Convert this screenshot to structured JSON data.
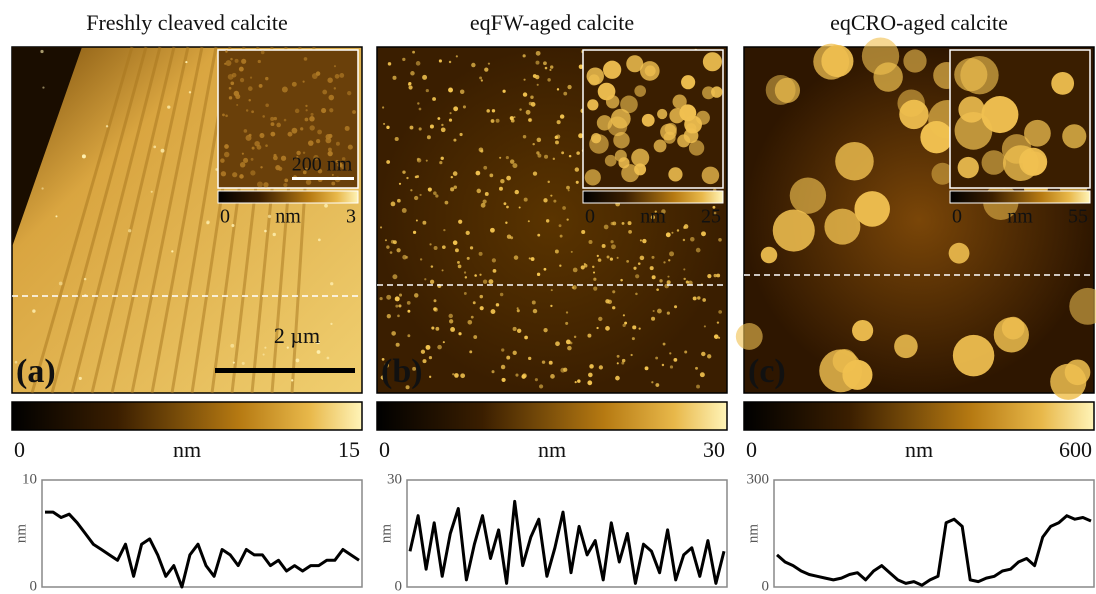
{
  "panels": [
    {
      "title": "Freshly cleaved calcite",
      "label": "(a)",
      "scale_bar": "2 µm",
      "colorbar": {
        "min": 0,
        "unit": "nm",
        "max": 15
      },
      "inset": {
        "scale_bar": "200 nm",
        "colorbar": {
          "min": 0,
          "unit": "nm",
          "max": 3
        }
      },
      "profile": {
        "ylabel": "nm",
        "ylim": [
          0,
          10
        ],
        "yticks": [
          0,
          10
        ],
        "values": [
          7,
          7,
          6.5,
          6.8,
          6,
          5,
          4,
          3.5,
          3,
          2.5,
          4,
          1,
          4,
          4.5,
          3,
          1,
          2,
          0,
          3,
          4,
          2,
          1,
          3.5,
          3,
          2,
          3.5,
          3,
          3,
          2,
          2.5,
          1.5,
          2,
          1.5,
          2,
          2,
          2.5,
          2.5,
          3.5,
          3,
          2.5
        ]
      }
    },
    {
      "title": "eqFW-aged calcite",
      "label": "(b)",
      "colorbar": {
        "min": 0,
        "unit": "nm",
        "max": 30
      },
      "inset": {
        "colorbar": {
          "min": 0,
          "unit": "nm",
          "max": 25
        }
      },
      "profile": {
        "ylabel": "nm",
        "ylim": [
          0,
          30
        ],
        "yticks": [
          0,
          30
        ],
        "values": [
          10,
          20,
          5,
          18,
          3,
          15,
          22,
          2,
          12,
          20,
          8,
          16,
          1,
          24,
          6,
          14,
          19,
          3,
          11,
          21,
          4,
          17,
          9,
          13,
          2,
          18,
          7,
          15,
          1,
          12,
          10,
          4,
          16,
          2,
          9,
          11,
          3,
          13,
          1,
          10
        ]
      }
    },
    {
      "title": "eqCRO-aged calcite",
      "label": "(c)",
      "colorbar": {
        "min": 0,
        "unit": "nm",
        "max": 600
      },
      "inset": {
        "colorbar": {
          "min": 0,
          "unit": "nm",
          "max": 55
        }
      },
      "profile": {
        "ylabel": "nm",
        "ylim": [
          0,
          300
        ],
        "yticks": [
          0,
          300
        ],
        "values": [
          90,
          70,
          60,
          45,
          35,
          30,
          25,
          20,
          25,
          35,
          40,
          20,
          45,
          60,
          40,
          20,
          10,
          15,
          5,
          20,
          30,
          180,
          190,
          170,
          20,
          15,
          25,
          30,
          45,
          50,
          70,
          80,
          60,
          140,
          170,
          180,
          200,
          190,
          195,
          185
        ]
      }
    }
  ]
}
